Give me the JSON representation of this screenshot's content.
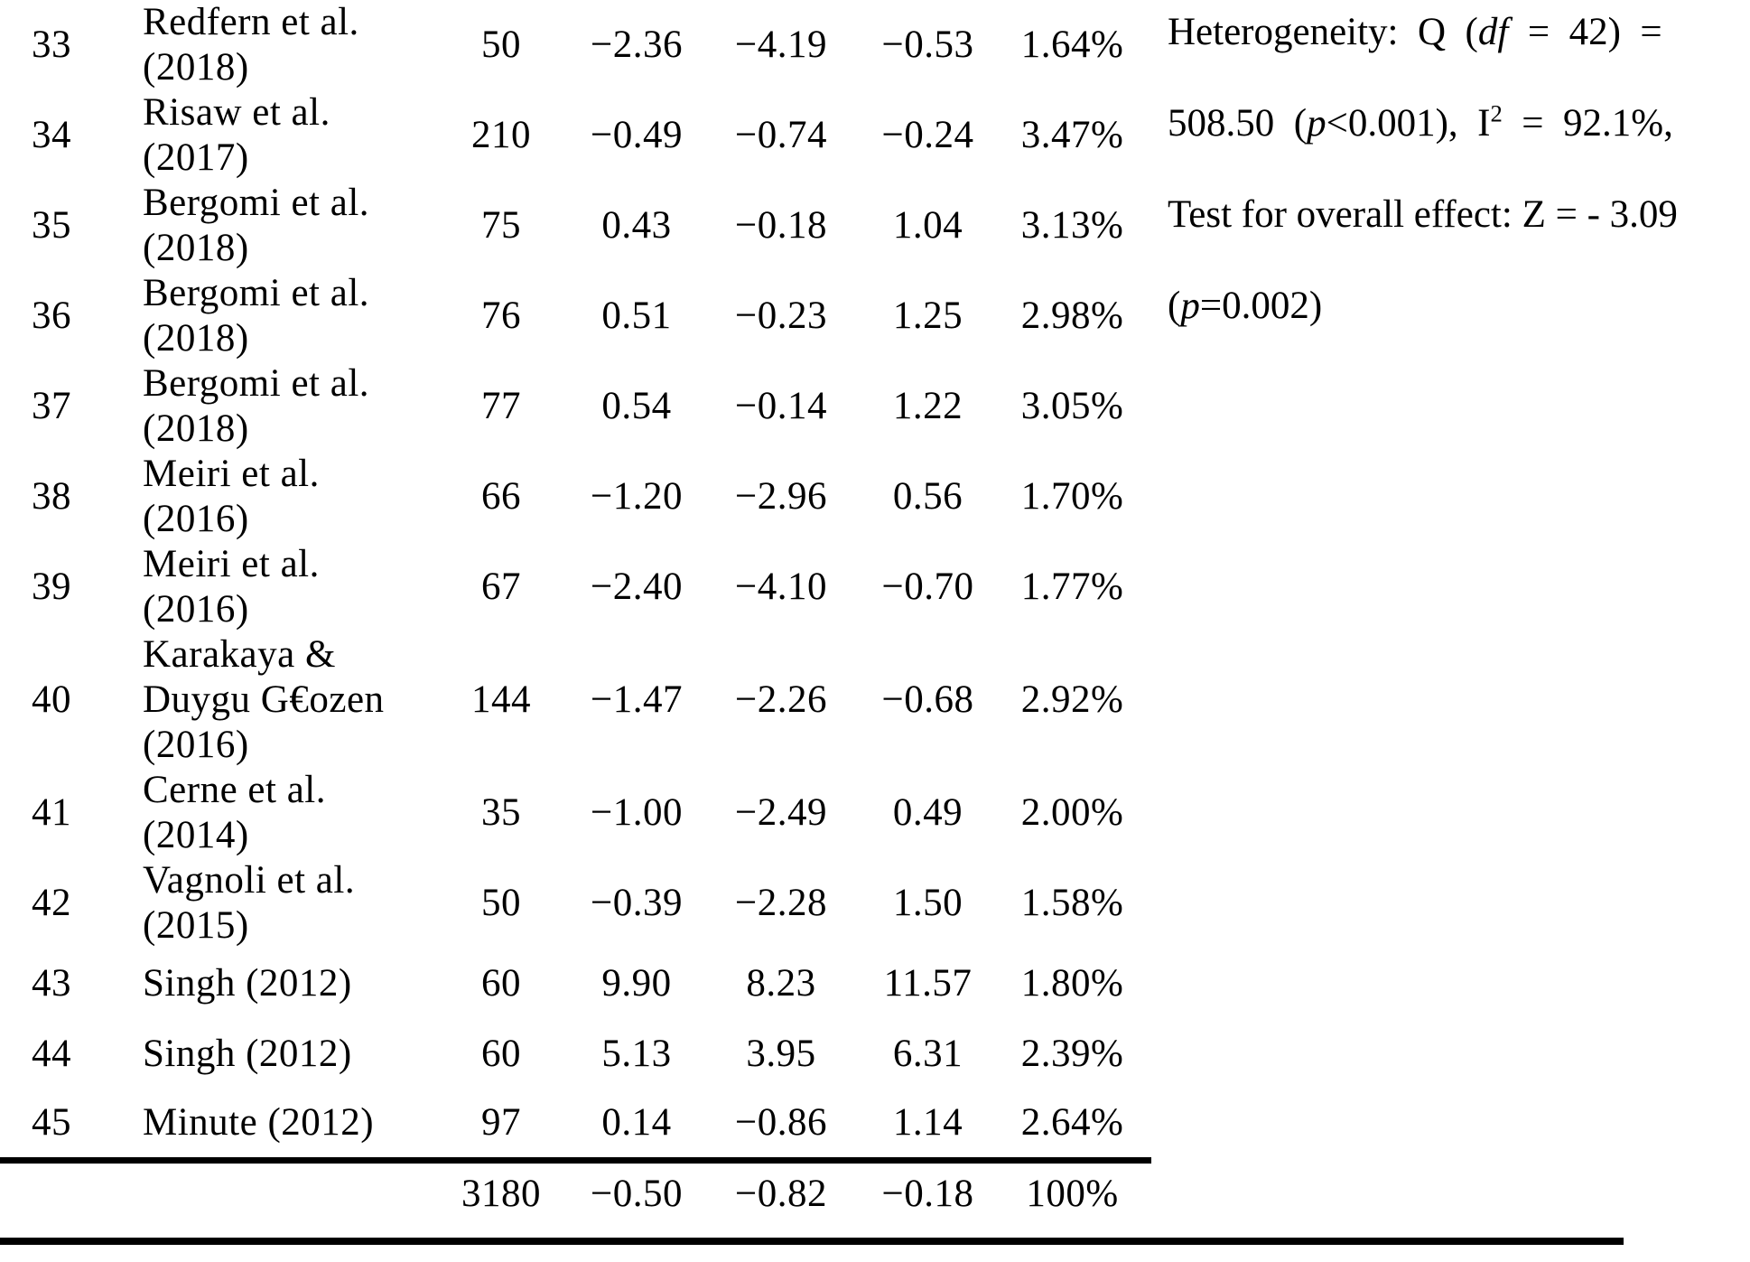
{
  "table": {
    "rows": [
      {
        "no": "33",
        "study": "Redfern et al.\n(2018)",
        "n": "50",
        "es": "−2.36",
        "low": "−4.19",
        "high": "−0.53",
        "weight": "1.64%"
      },
      {
        "no": "34",
        "study": "Risaw et al.\n(2017)",
        "n": "210",
        "es": "−0.49",
        "low": "−0.74",
        "high": "−0.24",
        "weight": "3.47%"
      },
      {
        "no": "35",
        "study": "Bergomi et al.\n(2018)",
        "n": "75",
        "es": "0.43",
        "low": "−0.18",
        "high": "1.04",
        "weight": "3.13%"
      },
      {
        "no": "36",
        "study": "Bergomi et al.\n(2018)",
        "n": "76",
        "es": "0.51",
        "low": "−0.23",
        "high": "1.25",
        "weight": "2.98%"
      },
      {
        "no": "37",
        "study": "Bergomi et al.\n(2018)",
        "n": "77",
        "es": "0.54",
        "low": "−0.14",
        "high": "1.22",
        "weight": "3.05%"
      },
      {
        "no": "38",
        "study": "Meiri et al.\n(2016)",
        "n": "66",
        "es": "−1.20",
        "low": "−2.96",
        "high": "0.56",
        "weight": "1.70%"
      },
      {
        "no": "39",
        "study": "Meiri et al.\n(2016)",
        "n": "67",
        "es": "−2.40",
        "low": "−4.10",
        "high": "−0.70",
        "weight": "1.77%"
      },
      {
        "no": "40",
        "study": "Karakaya &\nDuygu G€ozen\n(2016)",
        "n": "144",
        "es": "−1.47",
        "low": "−2.26",
        "high": "−0.68",
        "weight": "2.92%"
      },
      {
        "no": "41",
        "study": "Cerne et al.\n(2014)",
        "n": "35",
        "es": "−1.00",
        "low": "−2.49",
        "high": "0.49",
        "weight": "2.00%"
      },
      {
        "no": "42",
        "study": "Vagnoli et al.\n(2015)",
        "n": "50",
        "es": "−0.39",
        "low": "−2.28",
        "high": "1.50",
        "weight": "1.58%"
      },
      {
        "no": "43",
        "study": "Singh (2012)",
        "n": "60",
        "es": "9.90",
        "low": "8.23",
        "high": "11.57",
        "weight": "1.80%"
      },
      {
        "no": "44",
        "study": "Singh (2012)",
        "n": "60",
        "es": "5.13",
        "low": "3.95",
        "high": "6.31",
        "weight": "2.39%"
      },
      {
        "no": "45",
        "study": "Minute (2012)",
        "n": "97",
        "es": "0.14",
        "low": "−0.86",
        "high": "1.14",
        "weight": "2.64%"
      }
    ],
    "total": {
      "n": "3180",
      "es": "−0.50",
      "low": "−0.82",
      "high": "−0.18",
      "weight": "100%"
    }
  },
  "stats": {
    "l1a": "Heterogeneity:  Q  (",
    "l1b": "df",
    "l1c": "  =  42)  =",
    "l2a": "508.50  (",
    "l2b": "p",
    "l2c": "<0.001),  I",
    "l2d": "2",
    "l2e": "  =  92.1%,",
    "l3": "Test for overall effect: Z = - 3.09",
    "l4a": "(",
    "l4b": "p",
    "l4c": "=0.002)"
  }
}
